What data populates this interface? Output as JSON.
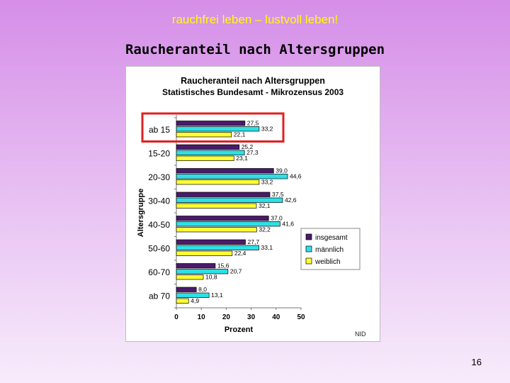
{
  "slide": {
    "header": "rauchfrei leben – lustvoll leben!",
    "title": "Raucheranteil nach Altersgruppen",
    "page_number": "16"
  },
  "chart_data": {
    "type": "bar",
    "orientation": "horizontal",
    "title": "Raucheranteil nach Altersgruppen",
    "subtitle": "Statistisches Bundesamt - Mikrozensus 2003",
    "xlabel": "Prozent",
    "ylabel": "Altersgruppe",
    "xlim": [
      0,
      50
    ],
    "xticks": [
      0,
      10,
      20,
      30,
      40,
      50
    ],
    "categories": [
      "ab 15",
      "15-20",
      "20-30",
      "30-40",
      "40-50",
      "50-60",
      "60-70",
      "ab 70"
    ],
    "series": [
      {
        "name": "insgesamt",
        "color": "#4a1a6b",
        "values": [
          27.5,
          25.2,
          39.0,
          37.5,
          37.0,
          27.7,
          15.6,
          8.0
        ],
        "labels": [
          "27,5",
          "25,2",
          "39,0",
          "37,5",
          "37,0",
          "27,7",
          "15,6",
          "8,0"
        ]
      },
      {
        "name": "männlich",
        "color": "#2ee0e6",
        "values": [
          33.2,
          27.3,
          44.6,
          42.6,
          41.6,
          33.1,
          20.7,
          13.1
        ],
        "labels": [
          "33,2",
          "27,3",
          "44,6",
          "42,6",
          "41,6",
          "33,1",
          "20,7",
          "13,1"
        ]
      },
      {
        "name": "weiblich",
        "color": "#ffff33",
        "values": [
          22.1,
          23.1,
          33.2,
          32.1,
          32.2,
          22.4,
          10.8,
          4.9
        ],
        "labels": [
          "22,1",
          "23,1",
          "33,2",
          "32,1",
          "32,2",
          "22,4",
          "10,8",
          "4,9"
        ]
      }
    ],
    "highlight_category": "ab 15",
    "highlight_color": "#e02020",
    "legend_position": "right",
    "source_note": "NID"
  }
}
